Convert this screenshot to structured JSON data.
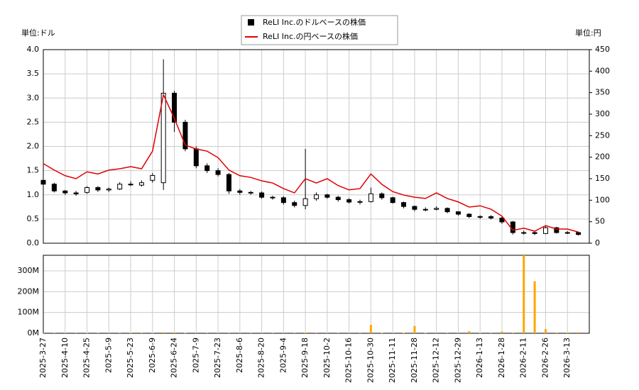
{
  "chart_data": [
    {
      "type": "candlestick",
      "ylabel": "単位:ドル",
      "y2label": "単位:円",
      "ylim": [
        0,
        4
      ],
      "yticks": [
        {
          "value": 0,
          "label": "0.0"
        },
        {
          "value": 0.5,
          "label": "0.5"
        },
        {
          "value": 1,
          "label": "1.0"
        },
        {
          "value": 1.5,
          "label": "1.5"
        },
        {
          "value": 2,
          "label": "2.0"
        },
        {
          "value": 2.5,
          "label": "2.5"
        },
        {
          "value": 3,
          "label": "3.0"
        },
        {
          "value": 3.5,
          "label": "3.5"
        },
        {
          "value": 4,
          "label": "4.0"
        }
      ],
      "y2lim": [
        0,
        450
      ],
      "y2ticks": [
        0,
        50,
        100,
        150,
        200,
        250,
        300,
        350,
        400,
        450
      ],
      "grid": true,
      "legend": "top",
      "series": [
        {
          "name": "ReLI Inc.のドルベースの株価",
          "color": "#000000",
          "open": [
            1.3,
            1.22,
            1.08,
            1.04,
            1.05,
            1.15,
            1.1,
            1.12,
            1.22,
            1.2,
            1.3,
            1.25,
            3.1,
            2.5,
            1.95,
            1.6,
            1.5,
            1.42,
            1.08,
            1.05,
            1.04,
            0.95,
            0.94,
            0.84,
            0.78,
            0.92,
            1.0,
            0.95,
            0.9,
            0.85,
            0.86,
            1.02,
            0.94,
            0.84,
            0.76,
            0.7,
            0.7,
            0.72,
            0.65,
            0.6,
            0.55,
            0.55,
            0.52,
            0.44,
            0.22,
            0.22,
            0.2,
            0.32,
            0.22,
            0.22
          ],
          "high": [
            1.35,
            1.25,
            1.1,
            1.08,
            1.18,
            1.18,
            1.15,
            1.26,
            1.28,
            1.3,
            1.45,
            3.8,
            3.15,
            2.55,
            2.0,
            1.65,
            1.55,
            1.45,
            1.12,
            1.08,
            1.07,
            0.98,
            0.97,
            0.88,
            1.95,
            1.05,
            1.02,
            0.98,
            0.93,
            0.9,
            1.15,
            1.05,
            0.96,
            0.86,
            0.78,
            0.74,
            0.76,
            0.74,
            0.66,
            0.62,
            0.58,
            0.58,
            0.55,
            0.46,
            0.26,
            0.25,
            0.36,
            0.34,
            0.25,
            0.24
          ],
          "low": [
            1.18,
            1.05,
            1.0,
            0.98,
            1.02,
            1.06,
            1.06,
            1.1,
            1.18,
            1.17,
            1.25,
            1.1,
            2.3,
            1.9,
            1.55,
            1.45,
            1.38,
            1.02,
            1.0,
            1.0,
            0.92,
            0.9,
            0.8,
            0.74,
            0.7,
            0.88,
            0.92,
            0.86,
            0.82,
            0.8,
            0.84,
            0.9,
            0.82,
            0.72,
            0.66,
            0.66,
            0.68,
            0.62,
            0.57,
            0.52,
            0.5,
            0.49,
            0.4,
            0.18,
            0.18,
            0.17,
            0.19,
            0.2,
            0.19,
            0.16
          ],
          "close": [
            1.22,
            1.08,
            1.04,
            1.02,
            1.15,
            1.1,
            1.12,
            1.22,
            1.22,
            1.25,
            1.4,
            3.1,
            2.5,
            1.95,
            1.6,
            1.5,
            1.42,
            1.08,
            1.05,
            1.04,
            0.95,
            0.94,
            0.84,
            0.78,
            0.92,
            1.0,
            0.95,
            0.9,
            0.85,
            0.86,
            1.02,
            0.94,
            0.84,
            0.76,
            0.7,
            0.7,
            0.72,
            0.65,
            0.6,
            0.55,
            0.55,
            0.52,
            0.44,
            0.22,
            0.22,
            0.2,
            0.32,
            0.22,
            0.22,
            0.18
          ]
        },
        {
          "name": "ReLI Inc.の円ベースの株価",
          "color": "#e00000",
          "axis": "y2",
          "values": [
            185,
            170,
            157,
            150,
            166,
            161,
            170,
            173,
            178,
            173,
            214,
            345,
            290,
            228,
            219,
            214,
            199,
            170,
            157,
            153,
            145,
            140,
            127,
            117,
            150,
            140,
            150,
            134,
            124,
            127,
            161,
            137,
            120,
            112,
            107,
            104,
            117,
            104,
            96,
            84,
            87,
            79,
            63,
            30,
            35,
            28,
            41,
            33,
            33,
            26
          ]
        }
      ]
    },
    {
      "type": "bar",
      "color": "#ffa500",
      "grid": true,
      "categories": [
        "2025-3-27",
        null,
        "2025-4-10",
        null,
        "2025-4-25",
        null,
        "2025-5-9",
        null,
        "2025-5-23",
        null,
        "2025-6-9",
        null,
        "2025-6-24",
        null,
        "2025-7-9",
        null,
        "2025-7-23",
        null,
        "2025-8-6",
        null,
        "2025-8-20",
        null,
        "2025-9-4",
        null,
        "2025-9-18",
        null,
        "2025-10-2",
        null,
        "2025-10-16",
        null,
        "2025-10-30",
        null,
        "2025-11-11",
        null,
        "2025-11-28",
        null,
        "2025-12-12",
        null,
        "2025-12-29",
        null,
        "2026-1-13",
        null,
        "2026-1-28",
        null,
        "2026-2-11",
        null,
        "2026-2-26",
        null,
        "2026-3-13",
        null
      ],
      "values": [
        2000000,
        1000000,
        1000000,
        1000000,
        2000000,
        1000000,
        1000000,
        1000000,
        2000000,
        1000000,
        2000000,
        5000000,
        4000000,
        2000000,
        1000000,
        1000000,
        1000000,
        1000000,
        1000000,
        1000000,
        1000000,
        1000000,
        1000000,
        1000000,
        3000000,
        1000000,
        1000000,
        1000000,
        1000000,
        1000000,
        40000000,
        2000000,
        1000000,
        2000000,
        35000000,
        2000000,
        1000000,
        1000000,
        1000000,
        10000000,
        2000000,
        1000000,
        8000000,
        3000000,
        375000000,
        250000000,
        20000000,
        3000000,
        3000000,
        5000000
      ],
      "ylim": [
        0,
        375000000
      ],
      "yticks": [
        {
          "value": 0,
          "label": "0M"
        },
        {
          "value": 100000000,
          "label": "100M"
        },
        {
          "value": 200000000,
          "label": "200M"
        },
        {
          "value": 300000000,
          "label": "300M"
        }
      ]
    }
  ]
}
